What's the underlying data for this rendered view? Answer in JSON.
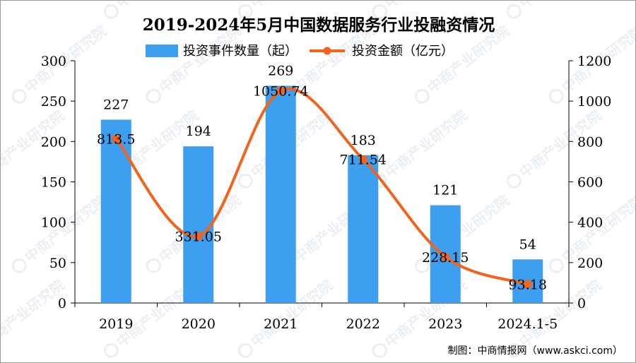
{
  "chart_data": {
    "type": "bar+line",
    "title": "2019-2024年5月中国数据服务行业投融资情况",
    "categories": [
      "2019",
      "2020",
      "2021",
      "2022",
      "2023",
      "2024.1-5"
    ],
    "series": [
      {
        "name": "投资事件数量（起）",
        "type": "bar",
        "axis": "left",
        "values": [
          227,
          194,
          269,
          183,
          121,
          54
        ],
        "labels": [
          "227",
          "194",
          "269",
          "183",
          "121",
          "54"
        ],
        "color": "#3d9ff0"
      },
      {
        "name": "投资金额（亿元）",
        "type": "line",
        "axis": "right",
        "smooth": true,
        "values": [
          813.5,
          331.05,
          1050.74,
          711.54,
          228.15,
          93.18
        ],
        "labels": [
          "813.5",
          "331.05",
          "1050.74",
          "711.54",
          "228.15",
          "93.18"
        ],
        "color": "#f0641e"
      }
    ],
    "y_left": {
      "min": 0,
      "max": 300,
      "ticks": [
        "0",
        "50",
        "100",
        "150",
        "200",
        "250",
        "300"
      ]
    },
    "y_right": {
      "min": 0,
      "max": 1200,
      "ticks": [
        "0",
        "200",
        "400",
        "600",
        "800",
        "1000",
        "1200"
      ]
    },
    "legend_position": "top",
    "grid": false
  },
  "source": "制图：中商情报网（www.askci.com）",
  "watermark": "中商产业研究院"
}
